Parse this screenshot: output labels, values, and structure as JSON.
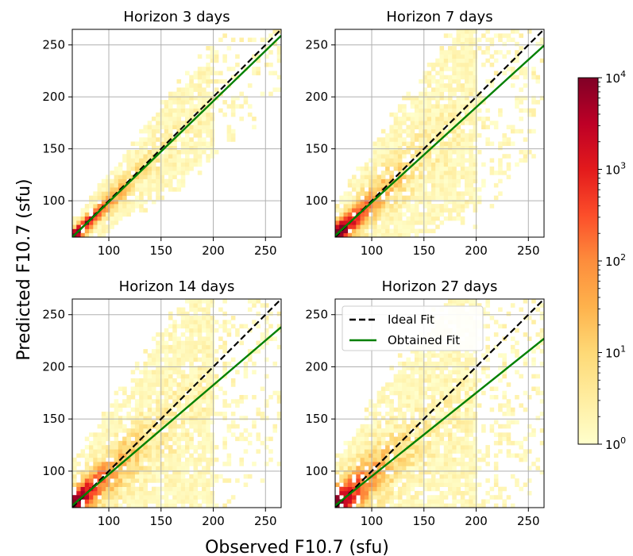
{
  "figure": {
    "xlabel": "Observed F10.7 (sfu)",
    "ylabel": "Predicted F10.7 (sfu)"
  },
  "legend": {
    "placement": "upper-left of Horizon 27 days panel",
    "entries": [
      {
        "label": "Ideal Fit",
        "style": "dashed",
        "color": "#000000"
      },
      {
        "label": "Obtained Fit",
        "style": "solid",
        "color": "#008000"
      }
    ]
  },
  "colorbar": {
    "scale": "log",
    "range": [
      1,
      10000
    ],
    "colormap": "YlOrRd",
    "ticks": [
      {
        "base": "10",
        "exp": "0"
      },
      {
        "base": "10",
        "exp": "1"
      },
      {
        "base": "10",
        "exp": "2"
      },
      {
        "base": "10",
        "exp": "3"
      },
      {
        "base": "10",
        "exp": "4"
      }
    ]
  },
  "chart_data": [
    {
      "type": "heatmap",
      "title": "Horizon 3 days",
      "xlim": [
        65,
        265
      ],
      "ylim": [
        65,
        265
      ],
      "xticks": [
        100,
        150,
        200,
        250
      ],
      "yticks": [
        100,
        150,
        200,
        250
      ],
      "grid": true,
      "ideal_fit": {
        "slope": 1.0,
        "intercept": 0
      },
      "obtained_fit": {
        "slope": 0.97,
        "intercept": 1.9
      },
      "density": {
        "spread_core": 7,
        "spread_max": 22,
        "slope": 0.97,
        "intercept": 1.9,
        "peak_count": 10000
      }
    },
    {
      "type": "heatmap",
      "title": "Horizon 7 days",
      "xlim": [
        65,
        265
      ],
      "ylim": [
        65,
        265
      ],
      "xticks": [
        100,
        150,
        200,
        250
      ],
      "yticks": [
        100,
        150,
        200,
        250
      ],
      "grid": true,
      "ideal_fit": {
        "slope": 1.0,
        "intercept": 0
      },
      "obtained_fit": {
        "slope": 0.915,
        "intercept": 7.0
      },
      "density": {
        "spread_core": 12,
        "spread_max": 40,
        "slope": 0.915,
        "intercept": 7.0,
        "peak_count": 6000
      }
    },
    {
      "type": "heatmap",
      "title": "Horizon 14 days",
      "xlim": [
        65,
        265
      ],
      "ylim": [
        65,
        265
      ],
      "xticks": [
        100,
        150,
        200,
        250
      ],
      "yticks": [
        100,
        150,
        200,
        250
      ],
      "grid": true,
      "ideal_fit": {
        "slope": 1.0,
        "intercept": 0
      },
      "obtained_fit": {
        "slope": 0.855,
        "intercept": 11.5
      },
      "density": {
        "spread_core": 15,
        "spread_max": 48,
        "slope": 0.855,
        "intercept": 11.5,
        "peak_count": 4000
      }
    },
    {
      "type": "heatmap",
      "title": "Horizon 27 days",
      "xlim": [
        65,
        265
      ],
      "ylim": [
        65,
        265
      ],
      "xticks": [
        100,
        150,
        200,
        250
      ],
      "yticks": [
        100,
        150,
        200,
        250
      ],
      "grid": true,
      "ideal_fit": {
        "slope": 1.0,
        "intercept": 0
      },
      "obtained_fit": {
        "slope": 0.8,
        "intercept": 15.0
      },
      "density": {
        "spread_core": 17,
        "spread_max": 52,
        "slope": 0.8,
        "intercept": 15.0,
        "peak_count": 3000
      }
    }
  ]
}
